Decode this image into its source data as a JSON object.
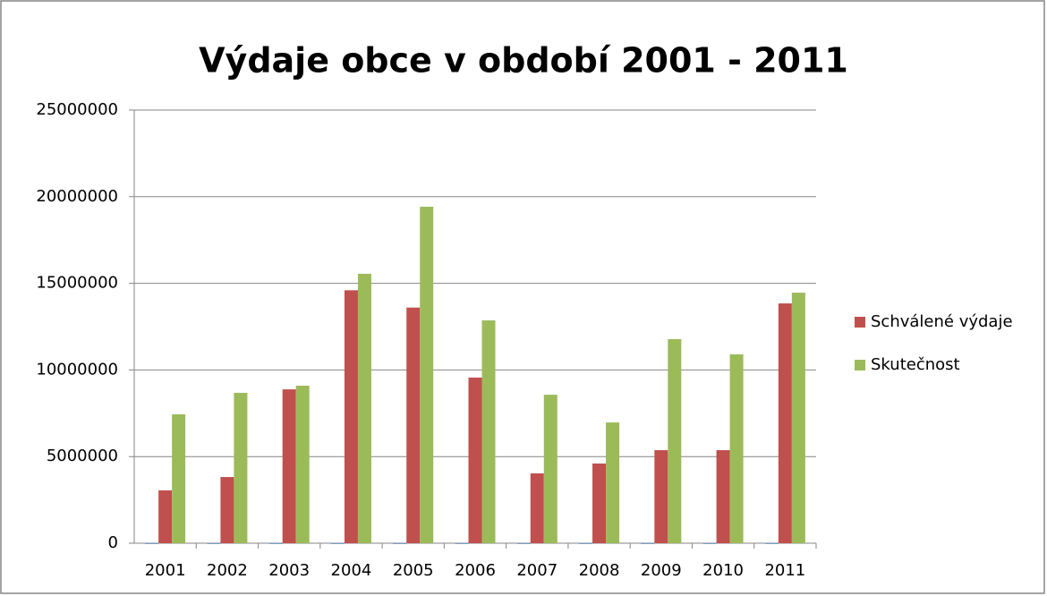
{
  "chart_data": {
    "type": "bar",
    "title": "Výdaje obce v období 2001 - 2011",
    "categories": [
      "2001",
      "2002",
      "2003",
      "2004",
      "2005",
      "2006",
      "2007",
      "2008",
      "2009",
      "2010",
      "2011"
    ],
    "series": [
      {
        "color": "#4f81bd",
        "values": [
          2001,
          2002,
          2003,
          2004,
          2005,
          2006,
          2007,
          2008,
          2009,
          2010,
          2011
        ]
      },
      {
        "name": "Schválené výdaje",
        "color": "#c0504d",
        "values": [
          3050000,
          3820000,
          8880000,
          14600000,
          13600000,
          9560000,
          4030000,
          4600000,
          5370000,
          5370000,
          13840000
        ]
      },
      {
        "name": "Skutečnost",
        "color": "#9bbb59",
        "values": [
          7440000,
          8680000,
          9090000,
          15550000,
          19420000,
          12860000,
          8570000,
          6970000,
          11780000,
          10900000,
          14460000
        ]
      }
    ],
    "ylim": [
      0,
      25000000
    ],
    "yticks": [
      0,
      5000000,
      10000000,
      15000000,
      20000000,
      25000000
    ],
    "grid": true,
    "legend": "right"
  }
}
